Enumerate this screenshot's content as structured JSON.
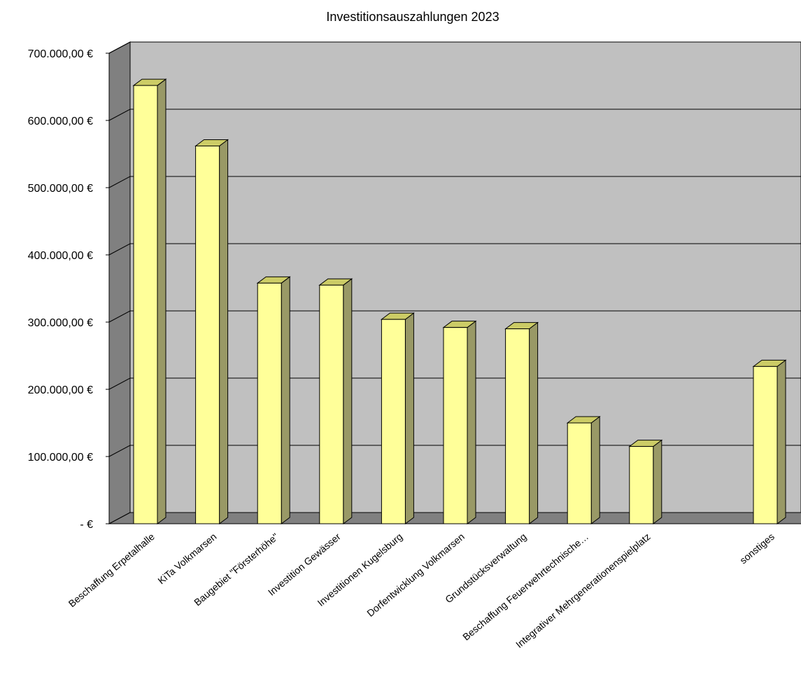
{
  "chart_data": {
    "type": "bar",
    "title": "Investitionsauszahlungen 2023",
    "xlabel": "",
    "ylabel": "",
    "categories": [
      "Beschaffung Erpetalhalle",
      "KiTa Volkmarsen",
      "Baugebiet \"Försterhöhe\"",
      "Investition Gewässer",
      "Investitionen Kugelsburg",
      "Dorfentwicklung Volkmarsen",
      "Grundstücksverwaltung",
      "Beschaffung Feuerwehrtechnische…",
      "Integrativer Mehrgenerationenspielplatz",
      "",
      "sonstiges"
    ],
    "values": [
      652000,
      562000,
      358000,
      355000,
      304000,
      292000,
      290000,
      150000,
      115000,
      null,
      234000
    ],
    "ylim": [
      0,
      700000
    ],
    "y_ticks": [
      {
        "value": 0,
        "label": "-   €"
      },
      {
        "value": 100000,
        "label": "100.000,00 €"
      },
      {
        "value": 200000,
        "label": "200.000,00 €"
      },
      {
        "value": 300000,
        "label": "300.000,00 €"
      },
      {
        "value": 400000,
        "label": "400.000,00 €"
      },
      {
        "value": 500000,
        "label": "500.000,00 €"
      },
      {
        "value": 600000,
        "label": "600.000,00 €"
      },
      {
        "value": 700000,
        "label": "700.000,00 €"
      }
    ],
    "grid": true,
    "legend": "none",
    "colors": {
      "bar_front": "#ffff99",
      "bar_top": "#cccc66",
      "bar_side": "#999966",
      "wall": "#c0c0c0",
      "wall_side": "#808080",
      "floor": "#808080",
      "gridline": "#000000"
    }
  }
}
